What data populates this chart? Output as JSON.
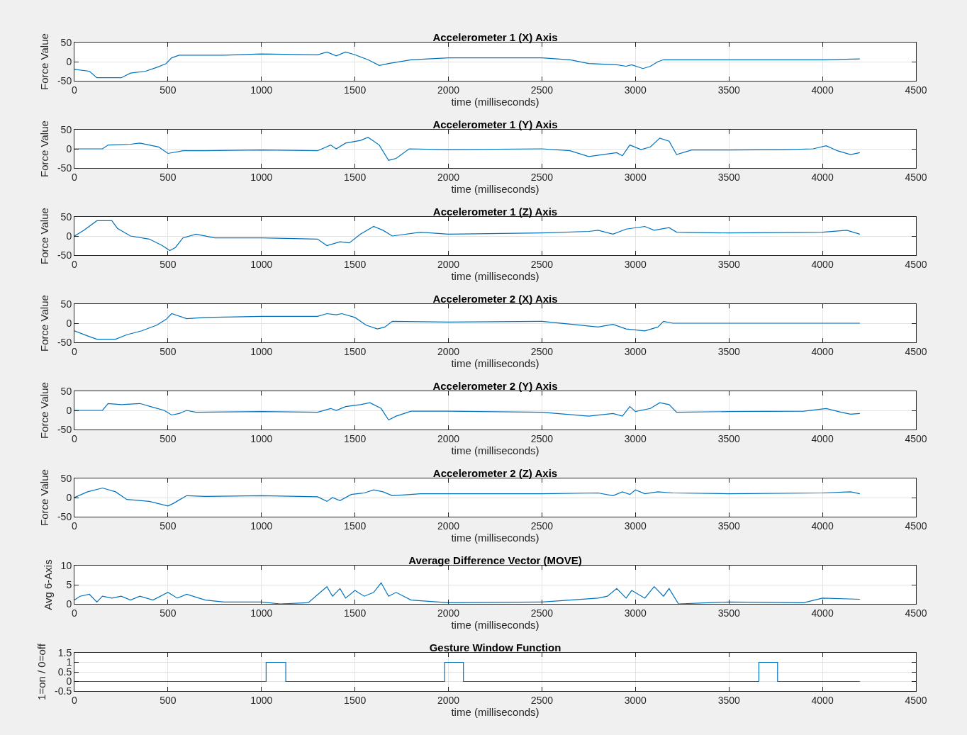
{
  "chart_data": [
    {
      "type": "line",
      "title": "Accelerometer 1 (X) Axis",
      "xlabel": "time (milliseconds)",
      "ylabel": "Force Value",
      "color": "#0072bd",
      "grid": true,
      "xlim": [
        0,
        4500
      ],
      "xticks": [
        0,
        500,
        1000,
        1500,
        2000,
        2500,
        3000,
        3500,
        4000,
        4500
      ],
      "ylim": [
        -50,
        50
      ],
      "yticks": [
        -50,
        0,
        50
      ],
      "x": [
        0,
        80,
        120,
        250,
        300,
        380,
        440,
        490,
        520,
        560,
        800,
        1000,
        1300,
        1350,
        1400,
        1450,
        1500,
        1570,
        1630,
        1680,
        1800,
        2000,
        2500,
        2650,
        2750,
        2900,
        2950,
        2980,
        3040,
        3080,
        3120,
        3150,
        3500,
        4000,
        4200
      ],
      "values": [
        -20,
        -25,
        -42,
        -42,
        -30,
        -25,
        -15,
        -5,
        10,
        17,
        17,
        20,
        18,
        25,
        15,
        25,
        18,
        5,
        -10,
        -5,
        5,
        10,
        10,
        5,
        -5,
        -8,
        -12,
        -8,
        -18,
        -12,
        0,
        5,
        5,
        5,
        7
      ]
    },
    {
      "type": "line",
      "title": "Accelerometer 1 (Y) Axis",
      "xlabel": "time (milliseconds)",
      "ylabel": "Force Value",
      "color": "#0072bd",
      "grid": true,
      "xlim": [
        0,
        4500
      ],
      "xticks": [
        0,
        500,
        1000,
        1500,
        2000,
        2500,
        3000,
        3500,
        4000,
        4500
      ],
      "ylim": [
        -50,
        50
      ],
      "yticks": [
        -50,
        0,
        50
      ],
      "x": [
        0,
        150,
        180,
        300,
        350,
        450,
        500,
        580,
        700,
        1000,
        1300,
        1370,
        1400,
        1450,
        1530,
        1570,
        1630,
        1680,
        1720,
        1790,
        2000,
        2500,
        2650,
        2750,
        2900,
        2930,
        2970,
        3030,
        3080,
        3130,
        3180,
        3220,
        3300,
        3500,
        3800,
        3950,
        4020,
        4080,
        4150,
        4200
      ],
      "values": [
        0,
        0,
        10,
        12,
        15,
        5,
        -12,
        -5,
        -5,
        -3,
        -5,
        10,
        0,
        15,
        22,
        30,
        10,
        -30,
        -25,
        0,
        -2,
        0,
        -5,
        -20,
        -10,
        -18,
        10,
        -2,
        5,
        28,
        20,
        -15,
        -3,
        -3,
        -2,
        0,
        8,
        -5,
        -15,
        -10
      ]
    },
    {
      "type": "line",
      "title": "Accelerometer 1 (Z) Axis",
      "xlabel": "time (milliseconds)",
      "ylabel": "Force Value",
      "color": "#0072bd",
      "grid": true,
      "xlim": [
        0,
        4500
      ],
      "xticks": [
        0,
        500,
        1000,
        1500,
        2000,
        2500,
        3000,
        3500,
        4000,
        4500
      ],
      "ylim": [
        -50,
        50
      ],
      "yticks": [
        -50,
        0,
        50
      ],
      "x": [
        0,
        50,
        120,
        200,
        230,
        300,
        400,
        470,
        510,
        540,
        580,
        650,
        750,
        1000,
        1300,
        1350,
        1420,
        1470,
        1530,
        1600,
        1650,
        1700,
        1850,
        2000,
        2500,
        2750,
        2800,
        2880,
        2950,
        3050,
        3100,
        3180,
        3220,
        3500,
        4000,
        4130,
        4200
      ],
      "values": [
        0,
        15,
        40,
        40,
        20,
        0,
        -8,
        -25,
        -38,
        -30,
        -5,
        5,
        -5,
        -5,
        -8,
        -25,
        -15,
        -18,
        5,
        25,
        15,
        0,
        10,
        5,
        8,
        12,
        15,
        5,
        18,
        25,
        15,
        22,
        10,
        8,
        10,
        15,
        5
      ]
    },
    {
      "type": "line",
      "title": "Accelerometer 2 (X) Axis",
      "xlabel": "time (milliseconds)",
      "ylabel": "Force Value",
      "color": "#0072bd",
      "grid": true,
      "xlim": [
        0,
        4500
      ],
      "xticks": [
        0,
        500,
        1000,
        1500,
        2000,
        2500,
        3000,
        3500,
        4000,
        4500
      ],
      "ylim": [
        -50,
        50
      ],
      "yticks": [
        -50,
        0,
        50
      ],
      "x": [
        0,
        80,
        120,
        220,
        280,
        360,
        440,
        490,
        520,
        600,
        700,
        1000,
        1300,
        1350,
        1400,
        1430,
        1500,
        1560,
        1620,
        1660,
        1700,
        2000,
        2500,
        2700,
        2800,
        2880,
        2950,
        3050,
        3120,
        3150,
        3200,
        3500,
        4200
      ],
      "values": [
        -20,
        -35,
        -42,
        -42,
        -30,
        -20,
        -5,
        10,
        25,
        12,
        15,
        18,
        18,
        25,
        22,
        25,
        15,
        -5,
        -15,
        -10,
        5,
        3,
        5,
        -5,
        -10,
        -3,
        -15,
        -20,
        -10,
        5,
        0,
        0,
        0
      ]
    },
    {
      "type": "line",
      "title": "Accelerometer 2 (Y) Axis",
      "xlabel": "time (milliseconds)",
      "ylabel": "Force Value",
      "color": "#0072bd",
      "grid": true,
      "xlim": [
        0,
        4500
      ],
      "xticks": [
        0,
        500,
        1000,
        1500,
        2000,
        2500,
        3000,
        3500,
        4000,
        4500
      ],
      "ylim": [
        -50,
        50
      ],
      "yticks": [
        -50,
        0,
        50
      ],
      "x": [
        0,
        150,
        180,
        250,
        350,
        420,
        480,
        520,
        560,
        600,
        650,
        1000,
        1300,
        1370,
        1400,
        1450,
        1530,
        1580,
        1640,
        1680,
        1720,
        1800,
        2000,
        2500,
        2750,
        2880,
        2930,
        2970,
        3000,
        3080,
        3130,
        3180,
        3220,
        3500,
        3900,
        4020,
        4100,
        4150,
        4200
      ],
      "values": [
        0,
        0,
        18,
        15,
        18,
        8,
        0,
        -12,
        -8,
        0,
        -5,
        -3,
        -5,
        5,
        0,
        10,
        15,
        20,
        5,
        -25,
        -15,
        -2,
        -2,
        -5,
        -15,
        -8,
        -15,
        10,
        -3,
        5,
        20,
        15,
        -5,
        -3,
        -2,
        5,
        -5,
        -10,
        -8
      ]
    },
    {
      "type": "line",
      "title": "Accelerometer 2 (Z) Axis",
      "xlabel": "time (milliseconds)",
      "ylabel": "Force Value",
      "color": "#0072bd",
      "grid": true,
      "xlim": [
        0,
        4500
      ],
      "xticks": [
        0,
        500,
        1000,
        1500,
        2000,
        2500,
        3000,
        3500,
        4000,
        4500
      ],
      "ylim": [
        -50,
        50
      ],
      "yticks": [
        -50,
        0,
        50
      ],
      "x": [
        0,
        70,
        150,
        220,
        280,
        400,
        500,
        530,
        600,
        700,
        1000,
        1300,
        1350,
        1380,
        1420,
        1480,
        1550,
        1600,
        1650,
        1700,
        1850,
        2500,
        2800,
        2880,
        2930,
        2970,
        3000,
        3050,
        3120,
        3200,
        3500,
        4000,
        4150,
        4200
      ],
      "values": [
        0,
        15,
        25,
        15,
        -5,
        -10,
        -22,
        -15,
        5,
        3,
        5,
        2,
        -10,
        0,
        -8,
        8,
        12,
        20,
        15,
        5,
        10,
        10,
        12,
        5,
        15,
        8,
        20,
        10,
        15,
        12,
        10,
        12,
        15,
        10
      ]
    },
    {
      "type": "line",
      "title": "Average Difference Vector (MOVE)",
      "xlabel": "time (milliseconds)",
      "ylabel": "Avg 6-Axis",
      "color": "#0072bd",
      "grid": true,
      "xlim": [
        0,
        4500
      ],
      "xticks": [
        0,
        500,
        1000,
        1500,
        2000,
        2500,
        3000,
        3500,
        4000,
        4500
      ],
      "ylim": [
        0,
        10
      ],
      "yticks": [
        0,
        5,
        10
      ],
      "x": [
        0,
        30,
        80,
        120,
        150,
        200,
        250,
        300,
        350,
        420,
        500,
        550,
        600,
        700,
        800,
        1000,
        1100,
        1250,
        1350,
        1380,
        1420,
        1450,
        1500,
        1550,
        1600,
        1640,
        1680,
        1720,
        1800,
        2000,
        2500,
        2800,
        2850,
        2900,
        2950,
        2980,
        3050,
        3100,
        3150,
        3180,
        3230,
        3500,
        3900,
        4000,
        4200
      ],
      "values": [
        1,
        2,
        2.5,
        0.5,
        2,
        1.5,
        2,
        1,
        2,
        1,
        3,
        1.5,
        2.5,
        1,
        0.5,
        0.5,
        0,
        0.3,
        4.5,
        2,
        4,
        1.5,
        3.5,
        2,
        3,
        5.5,
        2,
        3,
        1,
        0.3,
        0.5,
        1.5,
        2,
        4,
        1.5,
        3.5,
        1.5,
        4.5,
        2,
        4,
        0,
        0.5,
        0.3,
        1.5,
        1.2
      ]
    },
    {
      "type": "step",
      "title": "Gesture Window Function",
      "xlabel": "time (milliseconds)",
      "ylabel": "1=on / 0=off",
      "color": "#0072bd",
      "grid": true,
      "xlim": [
        0,
        4500
      ],
      "xticks": [
        0,
        500,
        1000,
        1500,
        2000,
        2500,
        3000,
        3500,
        4000,
        4500
      ],
      "ylim": [
        -0.5,
        1.5
      ],
      "yticks": [
        -0.5,
        0,
        0.5,
        1,
        1.5
      ],
      "x": [
        0,
        1025,
        1130,
        1980,
        2080,
        3660,
        3760,
        4200
      ],
      "values": [
        0,
        1,
        0,
        1,
        0,
        1,
        0,
        0
      ]
    }
  ]
}
